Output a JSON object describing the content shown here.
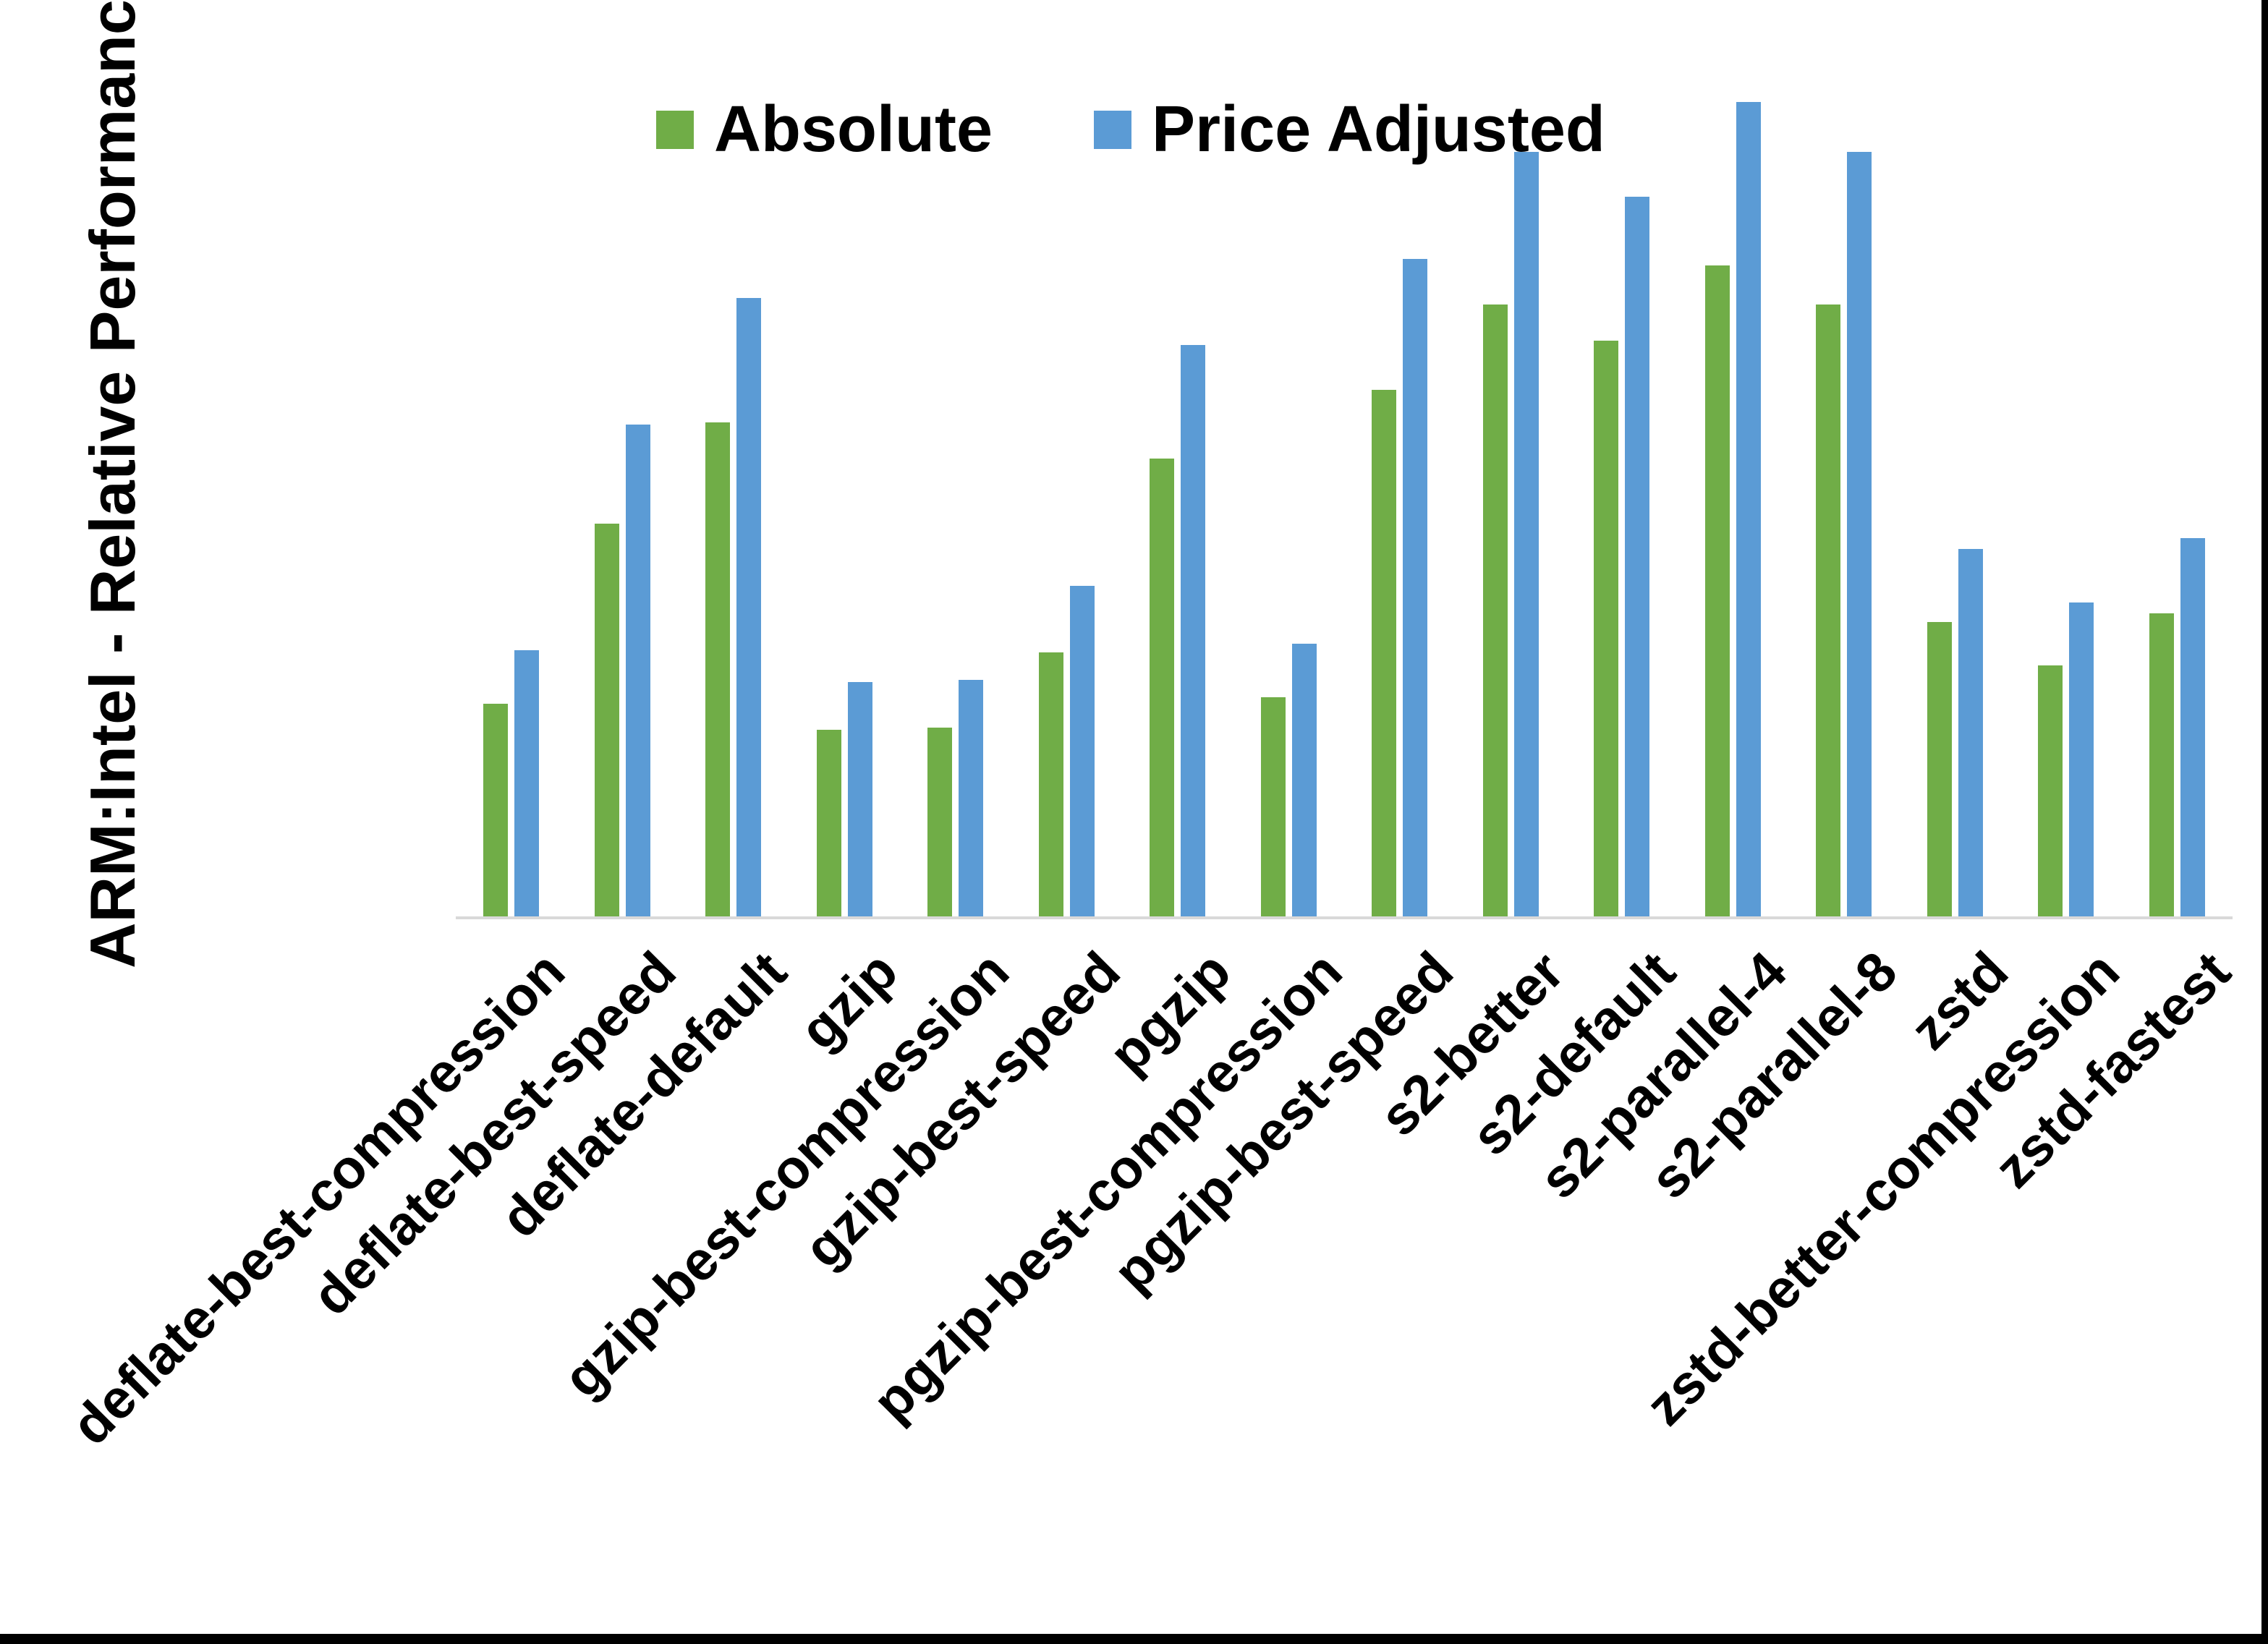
{
  "chart_data": {
    "type": "bar",
    "title": "",
    "xlabel": "",
    "ylabel": "ARM:Intel - Relative Performance",
    "ylim": [
      0.0,
      4.0
    ],
    "ytick_step": 0.5,
    "yticks": [
      "4.0",
      "3.5",
      "3.0",
      "2.5",
      "2.0",
      "1.5",
      "1.0",
      "0.5",
      "0.0"
    ],
    "grid": false,
    "legend_position": "top-center",
    "axis_line_color": "#d9d9d9",
    "categories": [
      "deflate-best-compression",
      "deflate-best-speed",
      "deflate-default",
      "gzip",
      "gzip-best-compression",
      "gzip-best-speed",
      "pgzip",
      "pgzip-best-compression",
      "pgzip-best-speed",
      "s2-better",
      "s2-default",
      "s2-parallel-4",
      "s2-parallel-8",
      "zstd",
      "zstd-better-compression",
      "zstd-fastest"
    ],
    "series": [
      {
        "name": "Absolute",
        "color": "#70AD47",
        "values": [
          0.99,
          1.83,
          2.3,
          0.87,
          0.88,
          1.23,
          2.13,
          1.02,
          2.45,
          2.85,
          2.68,
          3.03,
          2.85,
          1.37,
          1.17,
          1.41
        ]
      },
      {
        "name": "Price Adjusted",
        "color": "#5B9BD5",
        "values": [
          1.24,
          2.29,
          2.88,
          1.09,
          1.1,
          1.54,
          2.66,
          1.27,
          3.06,
          3.56,
          3.35,
          3.79,
          3.56,
          1.71,
          1.46,
          1.76
        ]
      }
    ]
  },
  "frame": {
    "edge_color": "#000000"
  }
}
